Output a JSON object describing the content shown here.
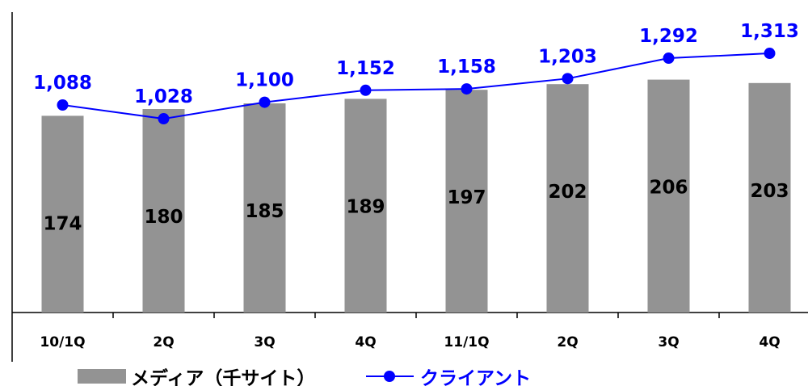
{
  "chart_data": {
    "type": "bar",
    "categories": [
      "10/1Q",
      "2Q",
      "3Q",
      "4Q",
      "11/1Q",
      "2Q",
      "3Q",
      "4Q"
    ],
    "series": [
      {
        "name": "メディア（千サイト）",
        "type": "bar",
        "color": "#939393",
        "values": [
          174,
          180,
          185,
          189,
          197,
          202,
          206,
          203
        ]
      },
      {
        "name": "クライアント",
        "type": "line",
        "color": "#0000ff",
        "values": [
          1088,
          1028,
          1100,
          1152,
          1158,
          1203,
          1292,
          1313
        ]
      }
    ],
    "value_labels": {
      "bars": [
        "174",
        "180",
        "185",
        "189",
        "197",
        "202",
        "206",
        "203"
      ],
      "line": [
        "1,088",
        "1,028",
        "1,100",
        "1,152",
        "1,158",
        "1,203",
        "1,292",
        "1,313"
      ]
    },
    "legend": {
      "placement": "bottom",
      "items": [
        "メディア（千サイト）",
        "クライアント"
      ]
    },
    "grid": false
  }
}
